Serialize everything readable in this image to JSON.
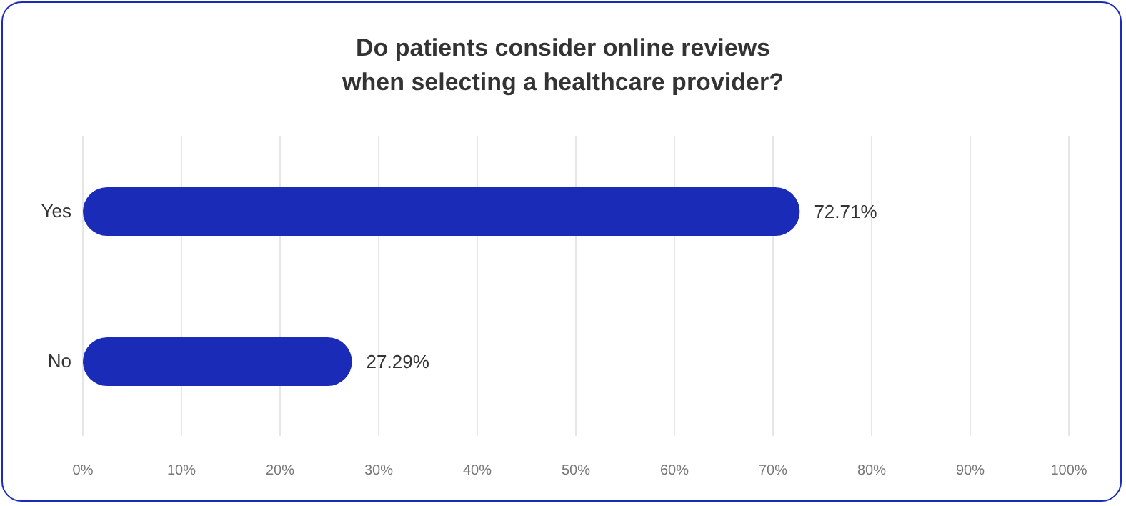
{
  "chart_data": {
    "type": "bar",
    "orientation": "horizontal",
    "title": "Do patients consider online reviews\nwhen selecting a healthcare provider?",
    "categories": [
      "Yes",
      "No"
    ],
    "values": [
      72.71,
      27.29
    ],
    "value_labels": [
      "72.71%",
      "27.29%"
    ],
    "color": "#1a2bb8",
    "xlim": [
      0,
      100
    ],
    "xticks": [
      {
        "value": 0,
        "label": "0%"
      },
      {
        "value": 10,
        "label": "10%"
      },
      {
        "value": 20,
        "label": "20%"
      },
      {
        "value": 30,
        "label": "30%"
      },
      {
        "value": 40,
        "label": "40%"
      },
      {
        "value": 50,
        "label": "50%"
      },
      {
        "value": 60,
        "label": "60%"
      },
      {
        "value": 70,
        "label": "70%"
      },
      {
        "value": 80,
        "label": "80%"
      },
      {
        "value": 90,
        "label": "90%"
      },
      {
        "value": 100,
        "label": "100%"
      }
    ],
    "grid": "x"
  }
}
